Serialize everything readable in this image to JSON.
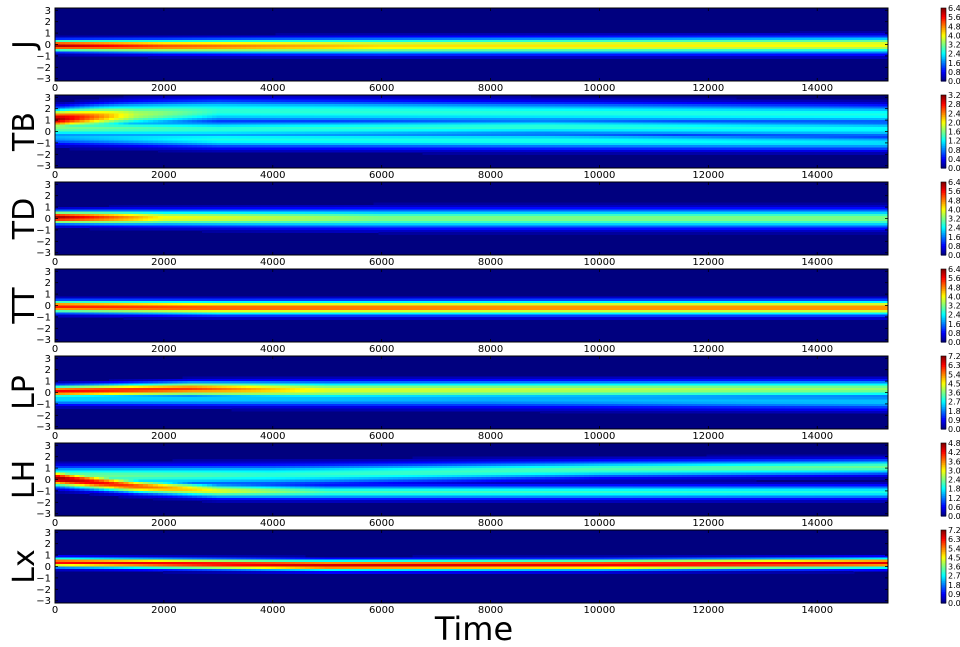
{
  "chart_data": {
    "type": "heatmap",
    "xlabel": "Time",
    "x_ticks": [
      0,
      2000,
      4000,
      6000,
      8000,
      10000,
      12000,
      14000
    ],
    "xlim": [
      0,
      15300
    ],
    "y_ticks": [
      3,
      2,
      1,
      0,
      -1,
      -2,
      -3
    ],
    "ylim": [
      -3.2,
      3.2
    ],
    "colormap": [
      "#00007f",
      "#0000ff",
      "#007fff",
      "#00ffff",
      "#7fff7f",
      "#ffff00",
      "#ff7f00",
      "#ff0000",
      "#7f0000"
    ],
    "panels": [
      {
        "name": "J",
        "colorbar_ticks": [
          "6.4",
          "5.6",
          "4.8",
          "4.0",
          "3.2",
          "2.4",
          "1.6",
          "0.8",
          "0.0"
        ],
        "max": 6.4,
        "bands": [
          {
            "t": [
              0,
              2000,
              6000,
              15300
            ],
            "center": [
              -0.1,
              -0.15,
              -0.15,
              -0.05
            ],
            "width": [
              0.32,
              0.38,
              0.45,
              0.48
            ],
            "peak": [
              0.95,
              0.8,
              0.66,
              0.62
            ]
          }
        ]
      },
      {
        "name": "TB",
        "colorbar_ticks": [
          "3.2",
          "2.8",
          "2.4",
          "2.0",
          "1.6",
          "1.2",
          "0.8",
          "0.4",
          "0.0"
        ],
        "max": 3.2,
        "bands": [
          {
            "t": [
              0,
              1500,
              3000,
              15300
            ],
            "center": [
              1.1,
              1.5,
              1.8,
              1.5
            ],
            "width": [
              0.55,
              0.7,
              0.7,
              0.55
            ],
            "peak": [
              0.98,
              0.55,
              0.42,
              0.4
            ]
          },
          {
            "t": [
              0,
              3000,
              9000,
              15300
            ],
            "center": [
              0.3,
              0.2,
              0.4,
              0.2
            ],
            "width": [
              0.5,
              0.5,
              0.5,
              0.5
            ],
            "peak": [
              0.5,
              0.42,
              0.42,
              0.38
            ]
          },
          {
            "t": [
              0,
              3000,
              9000,
              15300
            ],
            "center": [
              -0.5,
              -0.7,
              -0.8,
              -1.0
            ],
            "width": [
              0.45,
              0.5,
              0.5,
              0.45
            ],
            "peak": [
              0.3,
              0.4,
              0.4,
              0.35
            ]
          }
        ]
      },
      {
        "name": "TD",
        "colorbar_ticks": [
          "6.4",
          "5.6",
          "4.8",
          "4.0",
          "3.2",
          "2.4",
          "1.6",
          "0.8",
          "0.0"
        ],
        "max": 6.4,
        "bands": [
          {
            "t": [
              0,
              2000,
              6000,
              15300
            ],
            "center": [
              0.1,
              0.05,
              0.0,
              0.0
            ],
            "width": [
              0.35,
              0.45,
              0.55,
              0.55
            ],
            "peak": [
              0.97,
              0.62,
              0.5,
              0.5
            ]
          }
        ]
      },
      {
        "name": "TT",
        "colorbar_ticks": [
          "6.4",
          "5.6",
          "4.8",
          "4.0",
          "3.2",
          "2.4",
          "1.6",
          "0.8",
          "0.0"
        ],
        "max": 6.4,
        "bands": [
          {
            "t": [
              0,
              3000,
              9000,
              15300
            ],
            "center": [
              -0.1,
              -0.2,
              -0.2,
              -0.2
            ],
            "width": [
              0.35,
              0.4,
              0.42,
              0.42
            ],
            "peak": [
              0.85,
              0.8,
              0.75,
              0.75
            ]
          }
        ]
      },
      {
        "name": "LP",
        "colorbar_ticks": [
          "7.2",
          "6.3",
          "5.4",
          "4.5",
          "3.6",
          "2.7",
          "1.8",
          "0.9",
          "0.0"
        ],
        "max": 7.2,
        "bands": [
          {
            "t": [
              0,
              2500,
              5000,
              15300
            ],
            "center": [
              0.1,
              0.3,
              0.2,
              0.3
            ],
            "width": [
              0.33,
              0.4,
              0.5,
              0.5
            ],
            "peak": [
              0.88,
              0.82,
              0.6,
              0.52
            ]
          },
          {
            "t": [
              0,
              8000,
              15300
            ],
            "center": [
              -0.6,
              -0.6,
              -0.8
            ],
            "width": [
              0.35,
              0.5,
              0.5
            ],
            "peak": [
              0.35,
              0.3,
              0.32
            ]
          }
        ]
      },
      {
        "name": "LH",
        "colorbar_ticks": [
          "4.8",
          "4.2",
          "3.6",
          "3.0",
          "2.4",
          "1.8",
          "1.2",
          "0.6",
          "0.0"
        ],
        "max": 4.8,
        "bands": [
          {
            "t": [
              0,
              1500,
              3000,
              5000,
              15300
            ],
            "center": [
              0.1,
              -0.6,
              -1.0,
              -1.1,
              -1.1
            ],
            "width": [
              0.45,
              0.4,
              0.4,
              0.4,
              0.4
            ],
            "peak": [
              0.98,
              0.8,
              0.6,
              0.45,
              0.4
            ]
          },
          {
            "t": [
              0,
              4000,
              10000,
              15300
            ],
            "center": [
              0.3,
              0.4,
              0.9,
              1.1
            ],
            "width": [
              0.55,
              0.6,
              0.5,
              0.45
            ],
            "peak": [
              0.5,
              0.42,
              0.45,
              0.48
            ]
          }
        ]
      },
      {
        "name": "Lx",
        "colorbar_ticks": [
          "7.2",
          "6.3",
          "5.4",
          "4.5",
          "3.6",
          "2.7",
          "1.8",
          "0.9",
          "0.0"
        ],
        "max": 7.2,
        "bands": [
          {
            "t": [
              0,
              5000,
              10000,
              15300
            ],
            "center": [
              0.35,
              0.1,
              0.15,
              0.3
            ],
            "width": [
              0.28,
              0.3,
              0.3,
              0.3
            ],
            "peak": [
              0.88,
              0.92,
              0.9,
              0.9
            ]
          }
        ]
      }
    ]
  }
}
